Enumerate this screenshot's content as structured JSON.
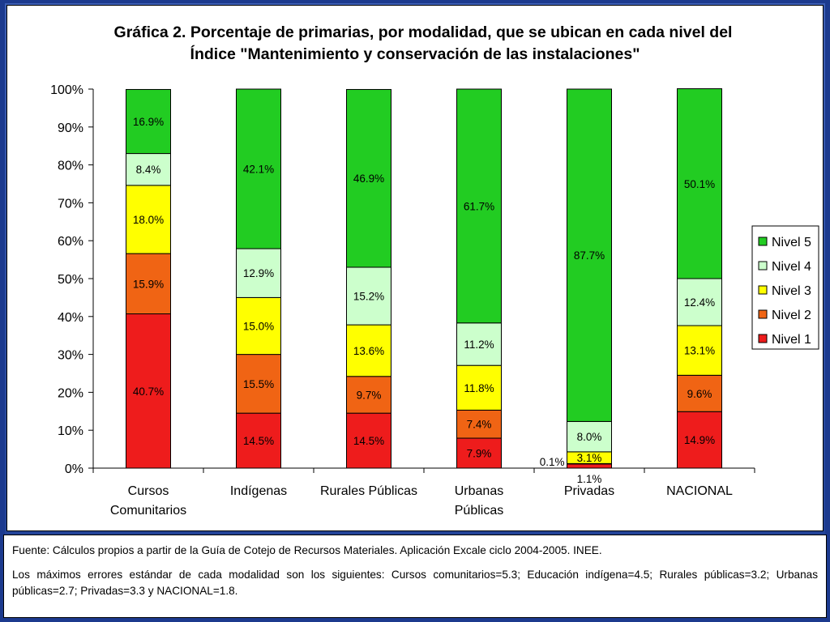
{
  "colors": {
    "Nivel 1": "#ee1c1c",
    "Nivel 2": "#f06414",
    "Nivel 3": "#ffff00",
    "Nivel 4": "#ccffcc",
    "Nivel 5": "#22cc22"
  },
  "chart_data": {
    "type": "bar",
    "stacked": true,
    "title_line1": "Gráfica 2. Porcentaje de primarias, por modalidad, que se ubican en cada nivel del",
    "title_line2": "Índice \"Mantenimiento y conservación de las instalaciones\"",
    "xlabel": "",
    "ylabel": "",
    "ylim": [
      0,
      100
    ],
    "yticks": [
      "0%",
      "10%",
      "20%",
      "30%",
      "40%",
      "50%",
      "60%",
      "70%",
      "80%",
      "90%",
      "100%"
    ],
    "legend_position": "right",
    "categories": [
      [
        "Cursos",
        "Comunitarios"
      ],
      [
        "Indígenas"
      ],
      [
        "Rurales Públicas"
      ],
      [
        "Urbanas",
        "Públicas"
      ],
      [
        "Privadas"
      ],
      [
        "NACIONAL"
      ]
    ],
    "series": [
      {
        "name": "Nivel 1",
        "values": [
          40.7,
          14.5,
          14.5,
          7.9,
          1.1,
          14.9
        ],
        "labels": [
          "40.7%",
          "14.5%",
          "14.5%",
          "7.9%",
          "1.1%",
          "14.9%"
        ]
      },
      {
        "name": "Nivel 2",
        "values": [
          15.9,
          15.5,
          9.7,
          7.4,
          0.1,
          9.6
        ],
        "labels": [
          "15.9%",
          "15.5%",
          "9.7%",
          "7.4%",
          "0.1%",
          "9.6%"
        ]
      },
      {
        "name": "Nivel 3",
        "values": [
          18.0,
          15.0,
          13.6,
          11.8,
          3.1,
          13.1
        ],
        "labels": [
          "18.0%",
          "15.0%",
          "13.6%",
          "11.8%",
          "3.1%",
          "13.1%"
        ]
      },
      {
        "name": "Nivel 4",
        "values": [
          8.4,
          12.9,
          15.2,
          11.2,
          8.0,
          12.4
        ],
        "labels": [
          "8.4%",
          "12.9%",
          "15.2%",
          "11.2%",
          "8.0%",
          "12.4%"
        ]
      },
      {
        "name": "Nivel 5",
        "values": [
          16.9,
          42.1,
          46.9,
          61.7,
          87.7,
          50.1
        ],
        "labels": [
          "16.9%",
          "42.1%",
          "46.9%",
          "61.7%",
          "87.7%",
          "50.1%"
        ]
      }
    ],
    "legend": [
      "Nivel 5",
      "Nivel 4",
      "Nivel 3",
      "Nivel 2",
      "Nivel 1"
    ]
  },
  "footer": {
    "source": "Fuente: Cálculos propios a partir de la Guía de Cotejo de Recursos Materiales. Aplicación Excale ciclo 2004-2005. INEE.",
    "errors": "Los máximos errores estándar de cada modalidad son los siguientes: Cursos comunitarios=5.3; Educación indígena=4.5; Rurales públicas=3.2; Urbanas públicas=2.7; Privadas=3.3 y NACIONAL=1.8."
  }
}
